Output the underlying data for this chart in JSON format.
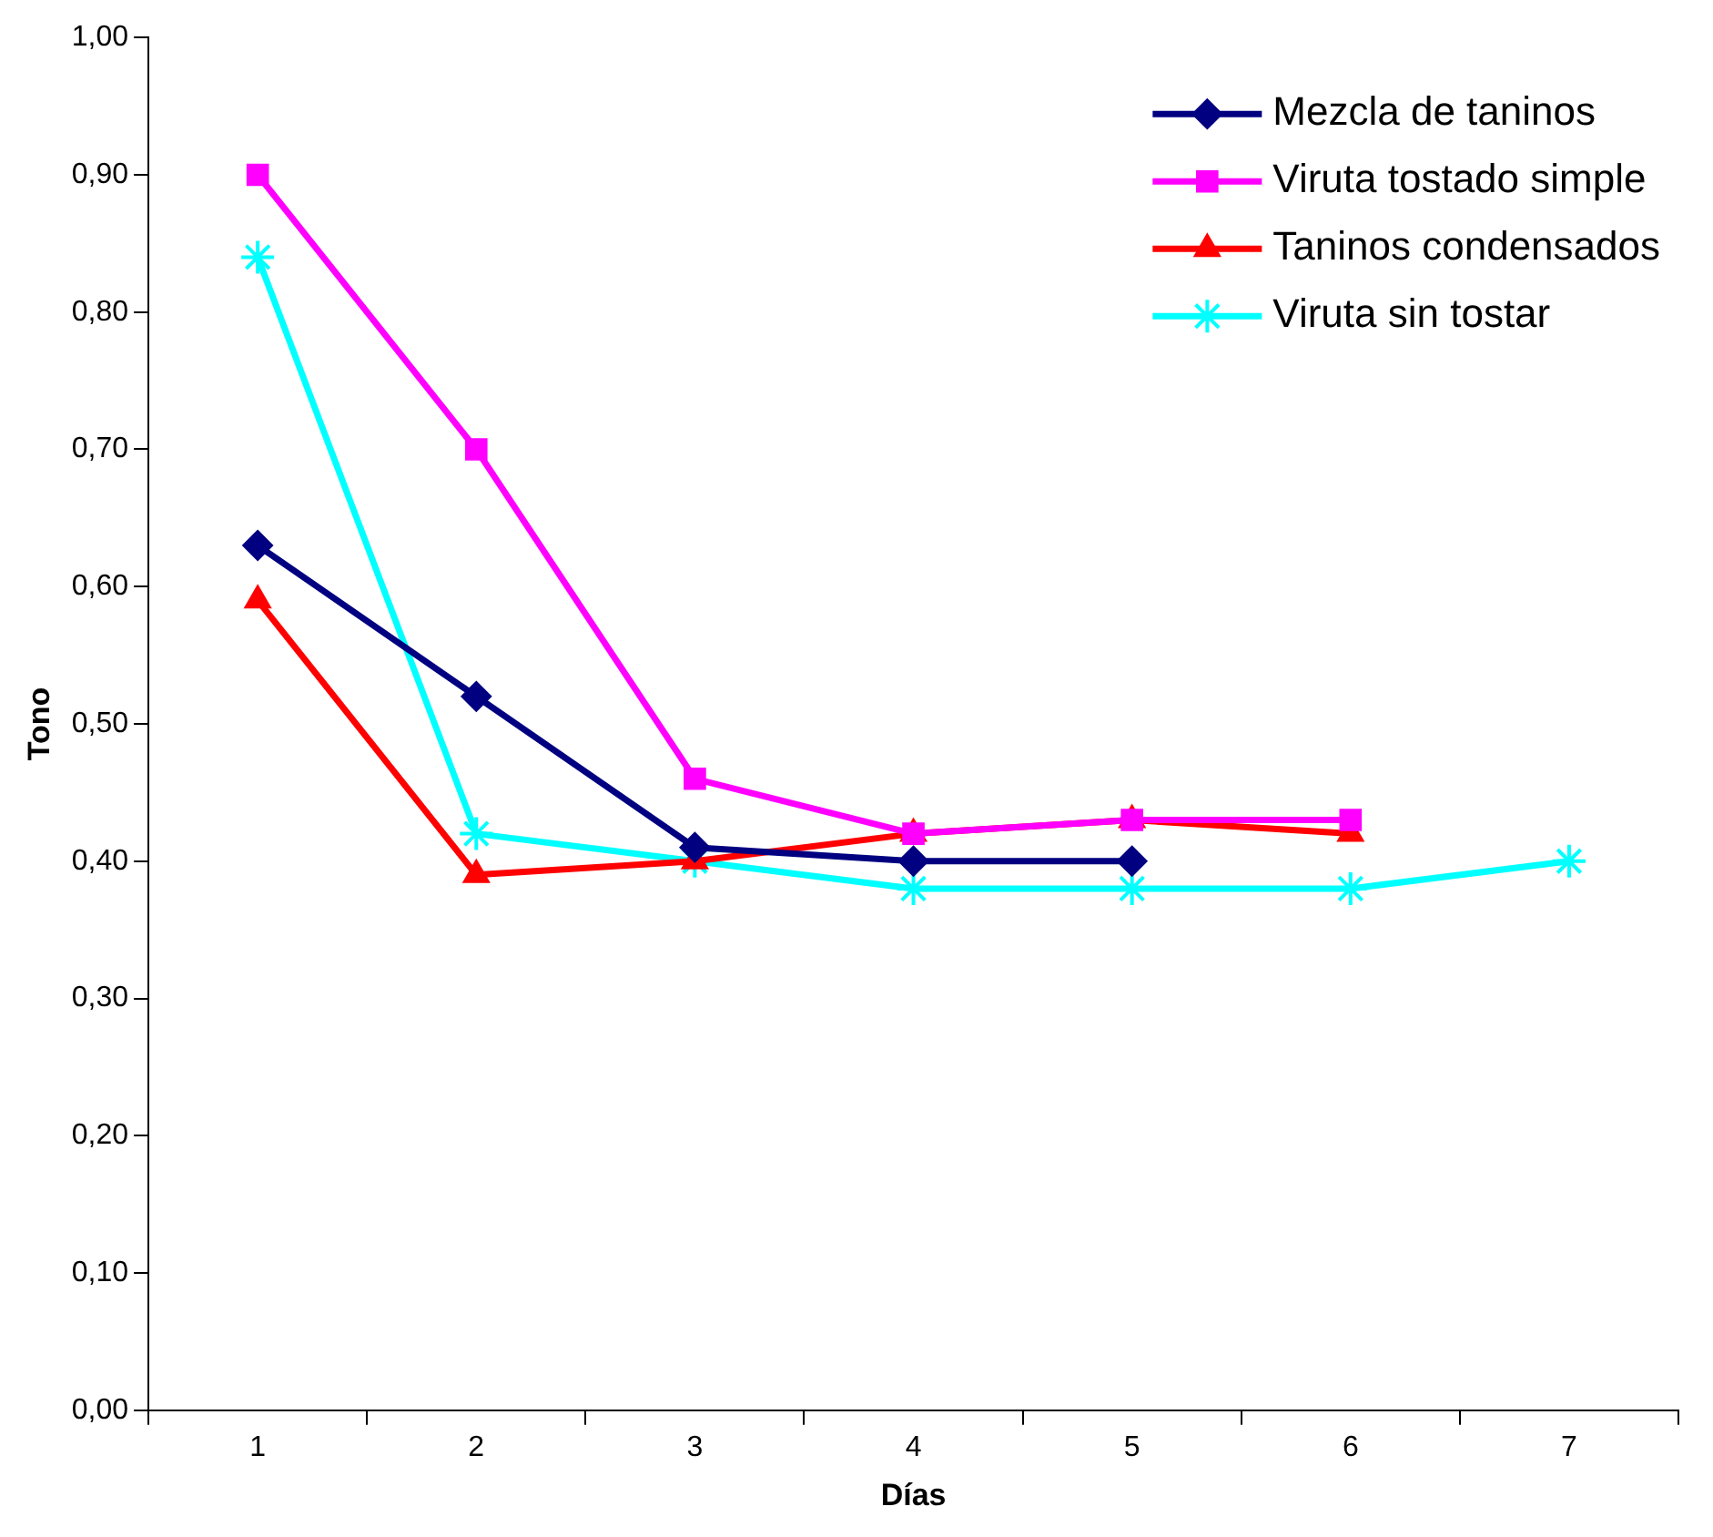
{
  "chart_data": {
    "type": "line",
    "xlabel": "Días",
    "ylabel": "Tono",
    "categories": [
      "1",
      "2",
      "3",
      "4",
      "5",
      "6",
      "7"
    ],
    "ylim": [
      0,
      1
    ],
    "yticks": [
      {
        "value": 0,
        "label": "0,00"
      },
      {
        "value": 0.1,
        "label": "0,10"
      },
      {
        "value": 0.2,
        "label": "0,20"
      },
      {
        "value": 0.3,
        "label": "0,30"
      },
      {
        "value": 0.4,
        "label": "0,40"
      },
      {
        "value": 0.5,
        "label": "0,50"
      },
      {
        "value": 0.6,
        "label": "0,60"
      },
      {
        "value": 0.7,
        "label": "0,70"
      },
      {
        "value": 0.8,
        "label": "0,80"
      },
      {
        "value": 0.9,
        "label": "0,90"
      },
      {
        "value": 1,
        "label": "1,00"
      }
    ],
    "grid": false,
    "legend": "top right",
    "line_style": "solid",
    "series": [
      {
        "name": "Mezcla de taninos",
        "color": "#000080",
        "marker": "diamond",
        "values": [
          0.63,
          0.52,
          0.41,
          0.4,
          0.4,
          null,
          null
        ]
      },
      {
        "name": "Viruta tostado simple",
        "color": "#ff00ff",
        "marker": "square",
        "values": [
          0.9,
          0.7,
          0.46,
          0.42,
          0.43,
          0.43,
          null
        ]
      },
      {
        "name": "Taninos condensados",
        "color": "#ff0000",
        "marker": "triangle",
        "values": [
          0.59,
          0.39,
          0.4,
          0.42,
          0.43,
          0.42,
          null
        ]
      },
      {
        "name": "Viruta sin tostar",
        "color": "#00ffff",
        "marker": "cross",
        "values": [
          0.84,
          0.42,
          0.4,
          0.38,
          0.38,
          0.38,
          0.4
        ]
      }
    ]
  }
}
